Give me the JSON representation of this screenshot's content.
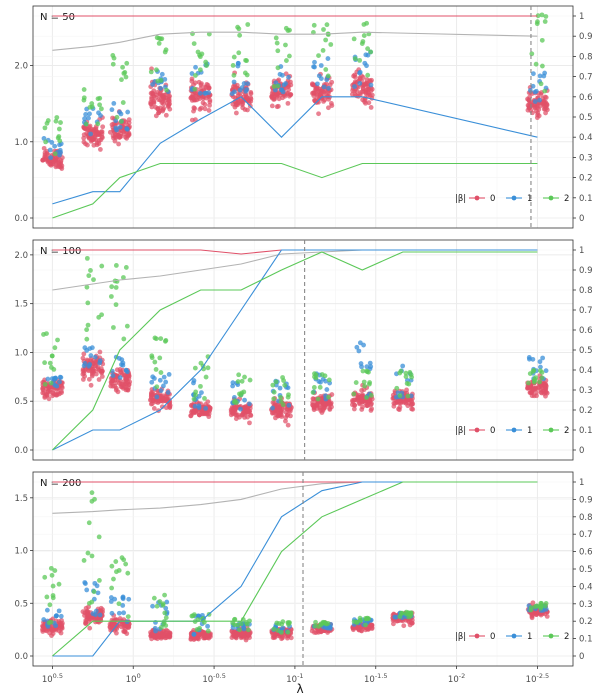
{
  "chart_data": {
    "type": "scatter",
    "xlabel": "λ",
    "x_ticks": [
      {
        "base": "10",
        "exp": "0.5"
      },
      {
        "base": "10",
        "exp": "0"
      },
      {
        "base": "10",
        "exp": "-0.5"
      },
      {
        "base": "10",
        "exp": "-1"
      },
      {
        "base": "10",
        "exp": "-1.5"
      },
      {
        "base": "10",
        "exp": "-2"
      },
      {
        "base": "10",
        "exp": "-2.5"
      }
    ],
    "categories_log10_lambda": [
      0.5,
      0.25,
      0.083,
      -0.167,
      -0.417,
      -0.667,
      -0.917,
      -1.167,
      -1.417,
      -1.667,
      -1.917,
      -2.167,
      -2.5
    ],
    "legend": {
      "title": "|β|",
      "entries": [
        "0",
        "1",
        "2"
      ]
    },
    "colors": {
      "0": "#e05068",
      "1": "#3a8fd8",
      "2": "#5bc858",
      "grey": "#b3b3b3"
    },
    "right_axis": {
      "range": [
        0,
        1
      ],
      "ticks": [
        "0",
        "0.1",
        "0.2",
        "0.3",
        "0.4",
        "0.5",
        "0.6",
        "0.7",
        "0.8",
        "0.9",
        "1"
      ]
    },
    "panels": [
      {
        "title": "N = 50",
        "ylim": [
          0,
          2.65
        ],
        "y_ticks": [
          "0.0",
          "1.0",
          "2.0"
        ],
        "y_tick_values": [
          0,
          1,
          2
        ],
        "vline_log10_lambda": -2.46,
        "clusters": {
          "center": [
            0.78,
            1.1,
            1.15,
            1.58,
            1.62,
            1.58,
            1.65,
            1.65,
            1.68,
            1.5
          ],
          "spread": [
            0.12,
            0.15,
            0.15,
            0.18,
            0.18,
            0.18,
            0.18,
            0.18,
            0.18,
            0.16
          ],
          "blue_top": [
            1.05,
            1.45,
            1.55,
            1.95,
            2.05,
            2.05,
            2.05,
            2.1,
            2.2,
            1.95
          ],
          "green_top": [
            1.35,
            1.75,
            2.2,
            2.4,
            2.5,
            2.55,
            2.5,
            2.55,
            2.58,
            2.68
          ]
        },
        "lines": {
          "0": [
            1,
            1,
            1,
            1,
            1,
            1,
            1,
            1,
            1,
            1
          ],
          "grey": [
            0.83,
            0.85,
            0.87,
            0.91,
            0.92,
            0.92,
            0.91,
            0.91,
            0.92,
            0.9
          ],
          "1": [
            0.07,
            0.13,
            0.13,
            0.37,
            0.49,
            0.6,
            0.4,
            0.6,
            0.6,
            0.4
          ],
          "2": [
            0,
            0.07,
            0.2,
            0.27,
            0.27,
            0.27,
            0.27,
            0.2,
            0.27,
            0.27
          ]
        }
      },
      {
        "title": "N = 100",
        "ylim": [
          0,
          2.05
        ],
        "y_ticks": [
          "0.0",
          "0.5",
          "1.0",
          "1.5",
          "2.0"
        ],
        "y_tick_values": [
          0,
          0.5,
          1,
          1.5,
          2
        ],
        "vline_log10_lambda": -1.06,
        "clusters": {
          "center": [
            0.63,
            0.85,
            0.72,
            0.52,
            0.41,
            0.41,
            0.42,
            0.48,
            0.52,
            0.53,
            0.65
          ],
          "spread": [
            0.09,
            0.12,
            0.1,
            0.09,
            0.07,
            0.08,
            0.08,
            0.08,
            0.08,
            0.08,
            0.08
          ],
          "blue_top": [
            0.8,
            1.07,
            1.0,
            0.8,
            0.72,
            0.72,
            0.72,
            0.8,
            1.12,
            0.9,
            0.95
          ],
          "green_top": [
            1.2,
            1.98,
            1.92,
            1.15,
            1.0,
            0.78,
            0.75,
            0.8,
            0.82,
            0.82,
            0.82
          ]
        },
        "lines": {
          "0": [
            1,
            1,
            1,
            1,
            1,
            0.98,
            1,
            1,
            1,
            1,
            1
          ],
          "grey": [
            0.8,
            0.83,
            0.85,
            0.87,
            0.9,
            0.93,
            0.98,
            0.99,
            1,
            1,
            1
          ],
          "1": [
            0,
            0.1,
            0.1,
            0.2,
            0.4,
            0.7,
            1,
            1,
            1,
            1,
            1
          ],
          "2": [
            0,
            0.2,
            0.5,
            0.7,
            0.8,
            0.8,
            0.9,
            0.99,
            0.9,
            0.99,
            0.99
          ]
        }
      },
      {
        "title": "N = 200",
        "ylim": [
          0,
          1.65
        ],
        "y_ticks": [
          "0.0",
          "0.5",
          "1.0",
          "1.5"
        ],
        "y_tick_values": [
          0,
          0.5,
          1,
          1.5
        ],
        "vline_log10_lambda": -1.05,
        "clusters": {
          "center": [
            0.28,
            0.38,
            0.29,
            0.2,
            0.2,
            0.21,
            0.22,
            0.26,
            0.28,
            0.36,
            0.43
          ],
          "spread": [
            0.05,
            0.07,
            0.06,
            0.04,
            0.04,
            0.04,
            0.04,
            0.04,
            0.04,
            0.05,
            0.05
          ],
          "blue_top": [
            0.45,
            0.7,
            0.58,
            0.55,
            0.4,
            0.32,
            0.3,
            0.3,
            0.35,
            0.42,
            0.48
          ],
          "green_top": [
            0.85,
            1.6,
            1.0,
            0.58,
            0.4,
            0.35,
            0.34,
            0.32,
            0.36,
            0.42,
            0.5
          ]
        },
        "lines": {
          "0": [
            1,
            1,
            1,
            1,
            1,
            1,
            1,
            1,
            1,
            1,
            1
          ],
          "grey": [
            0.82,
            0.83,
            0.84,
            0.85,
            0.87,
            0.9,
            0.96,
            0.99,
            1,
            1,
            1
          ],
          "1": [
            0,
            0,
            0.2,
            0.2,
            0.2,
            0.4,
            0.8,
            0.95,
            1,
            1,
            1
          ],
          "2": [
            0,
            0.2,
            0.2,
            0.2,
            0.2,
            0.2,
            0.6,
            0.8,
            0.9,
            1,
            1
          ]
        }
      }
    ]
  }
}
